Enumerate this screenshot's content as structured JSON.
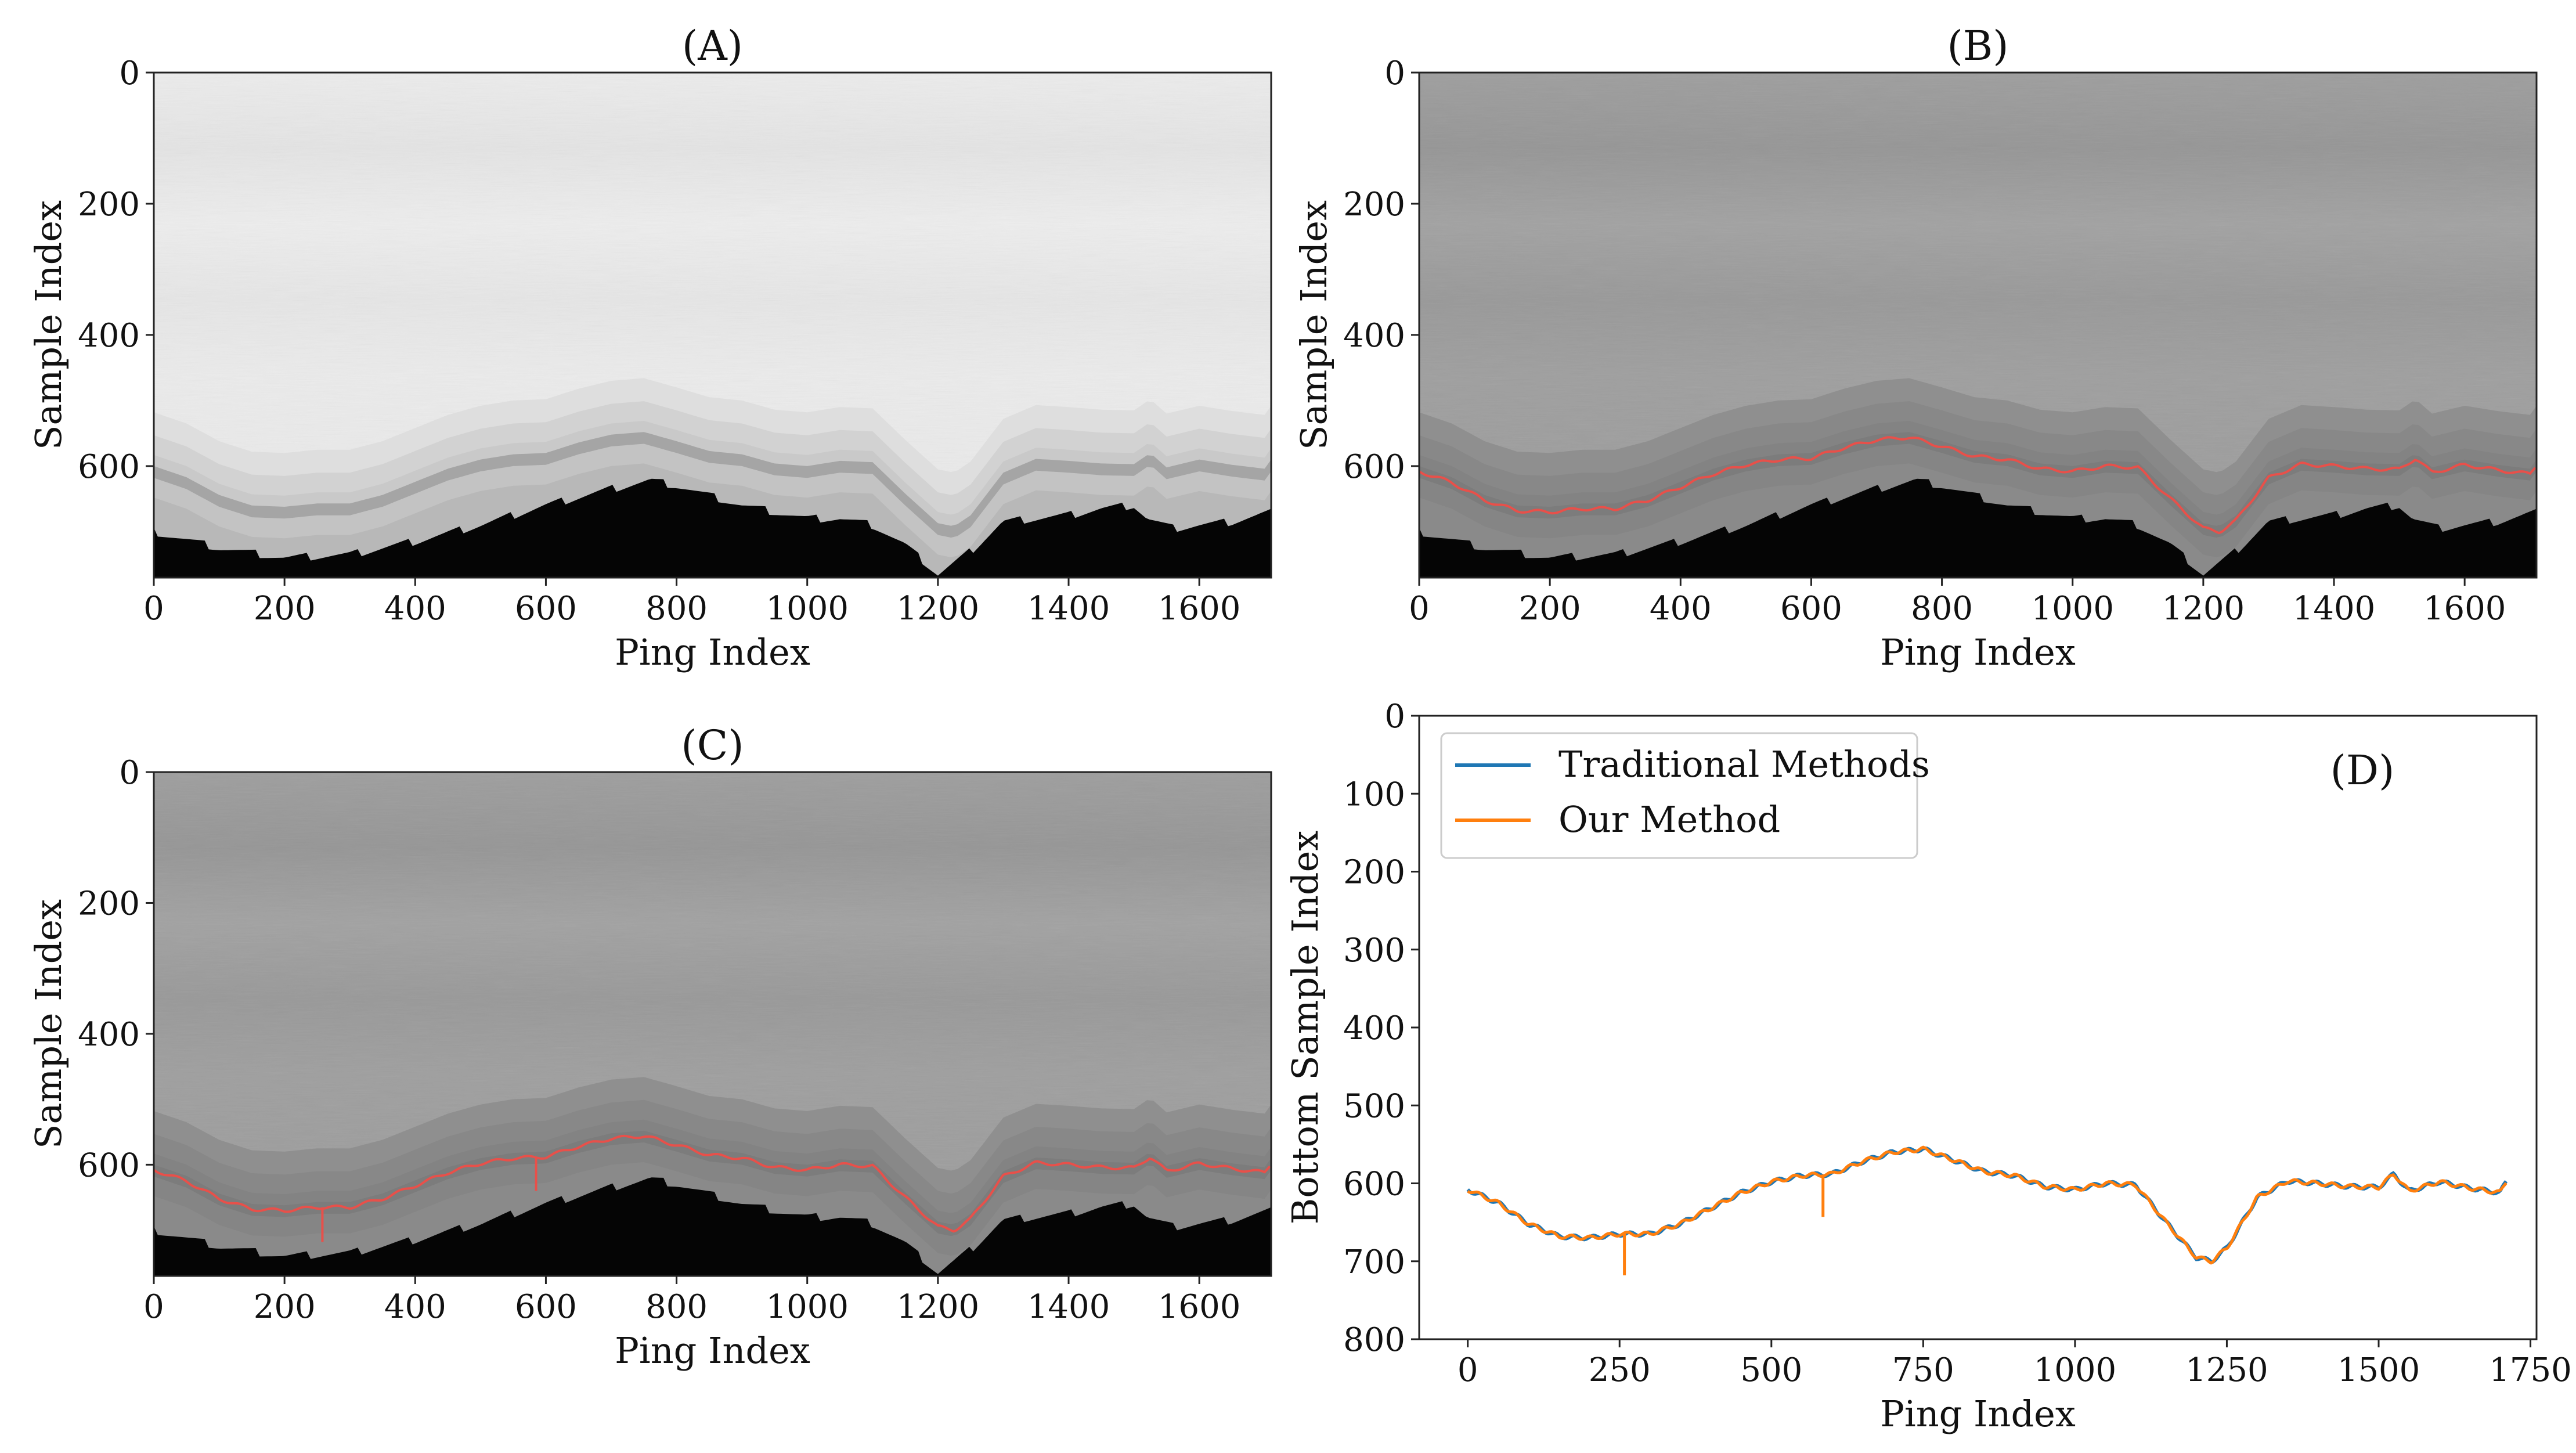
{
  "chart_data": [
    {
      "type": "heatmap",
      "title": "(A)",
      "xlabel": "Ping Index",
      "ylabel": "Sample Index",
      "xlim": [
        0,
        1710
      ],
      "ylim": [
        770,
        0
      ],
      "xticks": [
        "0",
        "200",
        "400",
        "600",
        "800",
        "1000",
        "1200",
        "1400",
        "1600"
      ],
      "yticks": [
        "0",
        "200",
        "400",
        "600"
      ],
      "background_tone": "light-gray",
      "bottom_line": false,
      "seabed_edge": {
        "x": [
          0,
          100,
          200,
          300,
          400,
          500,
          600,
          700,
          760,
          800,
          900,
          1000,
          1050,
          1100,
          1150,
          1200,
          1250,
          1300,
          1350,
          1400,
          1450,
          1500,
          1520,
          1560,
          1600,
          1650,
          1710
        ],
        "y": [
          700,
          725,
          740,
          735,
          715,
          690,
          660,
          635,
          622,
          630,
          660,
          680,
          680,
          690,
          720,
          765,
          730,
          685,
          680,
          675,
          665,
          660,
          680,
          695,
          690,
          685,
          670
        ]
      }
    },
    {
      "type": "heatmap",
      "title": "(B)",
      "xlabel": "Ping Index",
      "ylabel": "Sample Index",
      "xlim": [
        0,
        1710
      ],
      "ylim": [
        770,
        0
      ],
      "xticks": [
        "0",
        "200",
        "400",
        "600",
        "800",
        "1000",
        "1200",
        "1400",
        "1600"
      ],
      "yticks": [
        "0",
        "200",
        "400",
        "600"
      ],
      "background_tone": "mid-gray",
      "bottom_line": true,
      "bottom_line_color": "#e8504a",
      "spikes": []
    },
    {
      "type": "heatmap",
      "title": "(C)",
      "xlabel": "Ping Index",
      "ylabel": "Sample Index",
      "xlim": [
        0,
        1710
      ],
      "ylim": [
        770,
        0
      ],
      "xticks": [
        "0",
        "200",
        "400",
        "600",
        "800",
        "1000",
        "1200",
        "1400",
        "1600"
      ],
      "yticks": [
        "0",
        "200",
        "400",
        "600"
      ],
      "background_tone": "mid-gray",
      "bottom_line": true,
      "bottom_line_color": "#e8504a",
      "spikes": [
        {
          "x": 258,
          "y": 718
        },
        {
          "x": 585,
          "y": 640
        }
      ]
    },
    {
      "type": "line",
      "title": "(D)",
      "xlabel": "Ping Index",
      "ylabel": "Bottom Sample Index",
      "xlim": [
        -80,
        1760
      ],
      "ylim": [
        800,
        0
      ],
      "xticks": [
        "0",
        "250",
        "500",
        "750",
        "1000",
        "1250",
        "1500",
        "1750"
      ],
      "yticks": [
        "0",
        "100",
        "200",
        "300",
        "400",
        "500",
        "600",
        "700",
        "800"
      ],
      "legend": {
        "position": "top-left"
      },
      "series": [
        {
          "name": "Traditional Methods",
          "color": "#1f77b4"
        },
        {
          "name": "Our Method",
          "color": "#ff7f0e",
          "spikes": [
            {
              "x": 258,
              "y": 718
            },
            {
              "x": 585,
              "y": 643
            }
          ]
        }
      ],
      "x": [
        0,
        50,
        100,
        150,
        200,
        250,
        300,
        350,
        400,
        450,
        500,
        550,
        600,
        650,
        700,
        750,
        800,
        850,
        900,
        950,
        1000,
        1050,
        1100,
        1150,
        1200,
        1225,
        1250,
        1300,
        1350,
        1400,
        1450,
        1500,
        1525,
        1550,
        1600,
        1650,
        1700,
        1710
      ],
      "y": [
        608,
        625,
        652,
        668,
        670,
        665,
        665,
        652,
        632,
        612,
        598,
        590,
        588,
        572,
        560,
        556,
        570,
        585,
        590,
        604,
        608,
        600,
        602,
        650,
        695,
        700,
        683,
        618,
        597,
        600,
        604,
        605,
        588,
        610,
        598,
        606,
        612,
        598
      ]
    }
  ]
}
